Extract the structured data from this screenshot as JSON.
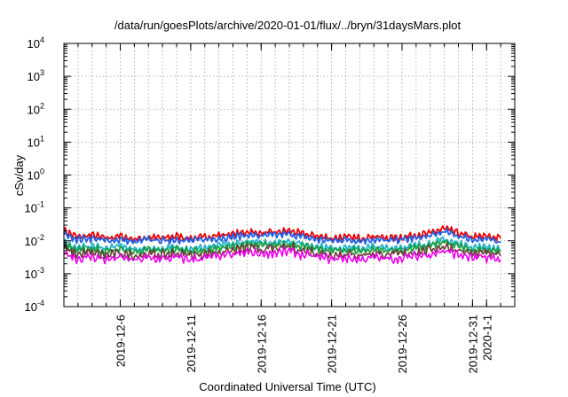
{
  "chart_data": {
    "type": "line",
    "title": "/data/run/goesPlots/archive/2020-01-01/flux/../bryn/31daysMars.plot",
    "xlabel": "Coordinated Universal Time (UTC)",
    "ylabel": "cSv/day",
    "yscale": "log",
    "ylim": [
      0.0001,
      10000
    ],
    "xlim": [
      "2019-12-02",
      "2020-01-03"
    ],
    "grid": true,
    "legend": "none",
    "y_ticks": [
      {
        "base": "10",
        "exp": "-4",
        "value": 0.0001
      },
      {
        "base": "10",
        "exp": "-3",
        "value": 0.001
      },
      {
        "base": "10",
        "exp": "-2",
        "value": 0.01
      },
      {
        "base": "10",
        "exp": "-1",
        "value": 0.1
      },
      {
        "base": "10",
        "exp": "0",
        "value": 1
      },
      {
        "base": "10",
        "exp": "1",
        "value": 10
      },
      {
        "base": "10",
        "exp": "2",
        "value": 100
      },
      {
        "base": "10",
        "exp": "3",
        "value": 1000
      },
      {
        "base": "10",
        "exp": "4",
        "value": 10000
      }
    ],
    "x_ticks": [
      {
        "label": "2019-12-6",
        "date": "2019-12-06"
      },
      {
        "label": "2019-12-11",
        "date": "2019-12-11"
      },
      {
        "label": "2019-12-16",
        "date": "2019-12-16"
      },
      {
        "label": "2019-12-21",
        "date": "2019-12-21"
      },
      {
        "label": "2019-12-26",
        "date": "2019-12-26"
      },
      {
        "label": "2019-12-31",
        "date": "2019-12-31"
      },
      {
        "label": "2020-1-1",
        "date": "2020-01-01"
      }
    ],
    "x": [
      "2019-12-02",
      "2019-12-03",
      "2019-12-04",
      "2019-12-05",
      "2019-12-06",
      "2019-12-07",
      "2019-12-08",
      "2019-12-09",
      "2019-12-10",
      "2019-12-11",
      "2019-12-12",
      "2019-12-13",
      "2019-12-14",
      "2019-12-15",
      "2019-12-16",
      "2019-12-17",
      "2019-12-18",
      "2019-12-19",
      "2019-12-20",
      "2019-12-21",
      "2019-12-22",
      "2019-12-23",
      "2019-12-24",
      "2019-12-25",
      "2019-12-26",
      "2019-12-27",
      "2019-12-28",
      "2019-12-29",
      "2019-12-30",
      "2019-12-31",
      "2020-01-01",
      "2020-01-02"
    ],
    "series": [
      {
        "color": "#ee0000",
        "values": [
          0.02,
          0.013,
          0.015,
          0.012,
          0.014,
          0.011,
          0.013,
          0.012,
          0.014,
          0.012,
          0.013,
          0.015,
          0.016,
          0.019,
          0.017,
          0.018,
          0.02,
          0.016,
          0.014,
          0.012,
          0.013,
          0.012,
          0.014,
          0.012,
          0.013,
          0.015,
          0.017,
          0.024,
          0.017,
          0.013,
          0.014,
          0.012
        ]
      },
      {
        "color": "#1f5fe6",
        "values": [
          0.016,
          0.011,
          0.012,
          0.01,
          0.011,
          0.009,
          0.011,
          0.01,
          0.011,
          0.01,
          0.011,
          0.012,
          0.013,
          0.015,
          0.014,
          0.015,
          0.016,
          0.013,
          0.011,
          0.01,
          0.011,
          0.01,
          0.011,
          0.01,
          0.011,
          0.012,
          0.014,
          0.019,
          0.014,
          0.011,
          0.011,
          0.009
        ]
      },
      {
        "color": "#20b2c8",
        "values": [
          0.009,
          0.006,
          0.007,
          0.006,
          0.007,
          0.0055,
          0.006,
          0.0058,
          0.0065,
          0.0058,
          0.0062,
          0.0072,
          0.008,
          0.0095,
          0.0088,
          0.0092,
          0.01,
          0.008,
          0.0068,
          0.006,
          0.0063,
          0.0058,
          0.0066,
          0.006,
          0.0064,
          0.0072,
          0.0085,
          0.011,
          0.0082,
          0.0064,
          0.0066,
          0.0055
        ]
      },
      {
        "color": "#18a040",
        "values": [
          0.0075,
          0.005,
          0.0058,
          0.0048,
          0.0056,
          0.0046,
          0.0052,
          0.0049,
          0.0055,
          0.0049,
          0.0052,
          0.006,
          0.0066,
          0.0078,
          0.0072,
          0.0076,
          0.0082,
          0.0066,
          0.0057,
          0.005,
          0.0053,
          0.0049,
          0.0055,
          0.005,
          0.0053,
          0.006,
          0.007,
          0.009,
          0.0068,
          0.0053,
          0.0055,
          0.0046
        ]
      },
      {
        "color": "#6b3a32",
        "values": [
          0.0058,
          0.0038,
          0.0044,
          0.0036,
          0.0042,
          0.0035,
          0.004,
          0.0037,
          0.0042,
          0.0037,
          0.004,
          0.0046,
          0.005,
          0.006,
          0.0055,
          0.0058,
          0.0063,
          0.005,
          0.0043,
          0.0038,
          0.004,
          0.0037,
          0.0042,
          0.0038,
          0.004,
          0.0046,
          0.0054,
          0.0068,
          0.0052,
          0.004,
          0.0042,
          0.0035
        ]
      },
      {
        "color": "#ee00ee",
        "values": [
          0.0045,
          0.0028,
          0.0033,
          0.0027,
          0.0031,
          0.0026,
          0.003,
          0.0028,
          0.0031,
          0.0027,
          0.003,
          0.0034,
          0.0037,
          0.0045,
          0.0041,
          0.0043,
          0.0047,
          0.0037,
          0.0032,
          0.0028,
          0.003,
          0.0027,
          0.0031,
          0.0028,
          0.003,
          0.0034,
          0.004,
          0.005,
          0.0038,
          0.003,
          0.0031,
          0.0026
        ]
      }
    ]
  }
}
